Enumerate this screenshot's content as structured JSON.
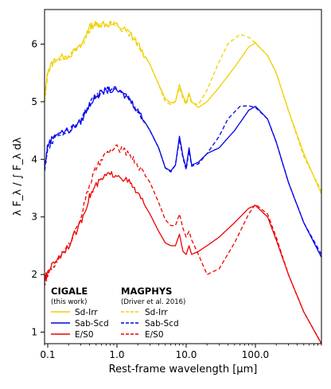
{
  "chart_data": {
    "type": "line",
    "xlabel": "Rest-frame wavelength [µm]",
    "ylabel": "λ F_λ / ∫ F_λ dλ",
    "xscale": "log",
    "xlim": [
      0.09,
      900
    ],
    "ylim": [
      0.8,
      6.6
    ],
    "xticks": [
      {
        "v": 0.1,
        "label": "0.1"
      },
      {
        "v": 1,
        "label": "1.0"
      },
      {
        "v": 10,
        "label": "10.0"
      },
      {
        "v": 100,
        "label": "100.0"
      }
    ],
    "yticks": [
      1,
      2,
      3,
      4,
      5,
      6
    ],
    "legend": {
      "placement": "bottom-left",
      "groups": [
        {
          "title": "CIGALE",
          "subtitle": "(this work)",
          "linestyle": "solid"
        },
        {
          "title": "MAGPHYS",
          "subtitle": "(Driver et al. 2016)",
          "linestyle": "dashed"
        }
      ]
    },
    "series": [
      {
        "name": "Sd-Irr",
        "model": "CIGALE",
        "color": "#f2d000",
        "dash": false,
        "points": [
          [
            0.09,
            5.05
          ],
          [
            0.1,
            5.55
          ],
          [
            0.13,
            5.75
          ],
          [
            0.2,
            5.8
          ],
          [
            0.3,
            5.95
          ],
          [
            0.4,
            6.3
          ],
          [
            0.5,
            6.35
          ],
          [
            0.7,
            6.35
          ],
          [
            1,
            6.33
          ],
          [
            1.5,
            6.2
          ],
          [
            2,
            6.0
          ],
          [
            3,
            5.65
          ],
          [
            4,
            5.3
          ],
          [
            5,
            5.05
          ],
          [
            6,
            4.98
          ],
          [
            7,
            5.0
          ],
          [
            8,
            5.3
          ],
          [
            9,
            5.1
          ],
          [
            10,
            4.98
          ],
          [
            11,
            5.15
          ],
          [
            12,
            5.0
          ],
          [
            15,
            4.9
          ],
          [
            20,
            5.0
          ],
          [
            30,
            5.25
          ],
          [
            50,
            5.6
          ],
          [
            80,
            5.95
          ],
          [
            100,
            6.02
          ],
          [
            150,
            5.8
          ],
          [
            200,
            5.5
          ],
          [
            300,
            4.85
          ],
          [
            500,
            4.1
          ],
          [
            900,
            3.4
          ]
        ]
      },
      {
        "name": "Sd-Irr",
        "model": "MAGPHYS",
        "color": "#f2d000",
        "dash": true,
        "points": [
          [
            0.09,
            5.0
          ],
          [
            0.1,
            5.5
          ],
          [
            0.13,
            5.7
          ],
          [
            0.2,
            5.8
          ],
          [
            0.3,
            5.95
          ],
          [
            0.4,
            6.25
          ],
          [
            0.5,
            6.35
          ],
          [
            0.7,
            6.35
          ],
          [
            1,
            6.33
          ],
          [
            1.5,
            6.2
          ],
          [
            2,
            6.0
          ],
          [
            3,
            5.65
          ],
          [
            4,
            5.3
          ],
          [
            5,
            5.0
          ],
          [
            6,
            4.95
          ],
          [
            7,
            5.0
          ],
          [
            8,
            5.25
          ],
          [
            9,
            5.05
          ],
          [
            10,
            4.95
          ],
          [
            11,
            5.12
          ],
          [
            12,
            4.98
          ],
          [
            15,
            4.95
          ],
          [
            20,
            5.2
          ],
          [
            30,
            5.7
          ],
          [
            40,
            6.0
          ],
          [
            60,
            6.17
          ],
          [
            80,
            6.12
          ],
          [
            100,
            6.02
          ],
          [
            150,
            5.8
          ],
          [
            200,
            5.5
          ],
          [
            300,
            4.85
          ],
          [
            500,
            4.05
          ],
          [
            900,
            3.45
          ]
        ]
      },
      {
        "name": "Sab-Scd",
        "model": "CIGALE",
        "color": "#0000ee",
        "dash": false,
        "points": [
          [
            0.09,
            3.85
          ],
          [
            0.1,
            4.25
          ],
          [
            0.13,
            4.45
          ],
          [
            0.2,
            4.5
          ],
          [
            0.3,
            4.65
          ],
          [
            0.4,
            4.95
          ],
          [
            0.5,
            5.1
          ],
          [
            0.7,
            5.2
          ],
          [
            1,
            5.2
          ],
          [
            1.5,
            5.05
          ],
          [
            2,
            4.85
          ],
          [
            3,
            4.5
          ],
          [
            4,
            4.2
          ],
          [
            5,
            3.85
          ],
          [
            6,
            3.8
          ],
          [
            7,
            3.9
          ],
          [
            8,
            4.4
          ],
          [
            9,
            4.05
          ],
          [
            10,
            3.85
          ],
          [
            11,
            4.2
          ],
          [
            12,
            3.9
          ],
          [
            15,
            3.95
          ],
          [
            20,
            4.1
          ],
          [
            30,
            4.2
          ],
          [
            50,
            4.5
          ],
          [
            80,
            4.85
          ],
          [
            100,
            4.92
          ],
          [
            150,
            4.7
          ],
          [
            200,
            4.3
          ],
          [
            300,
            3.6
          ],
          [
            500,
            2.9
          ],
          [
            900,
            2.3
          ]
        ]
      },
      {
        "name": "Sab-Scd",
        "model": "MAGPHYS",
        "color": "#0000ee",
        "dash": true,
        "points": [
          [
            0.09,
            3.8
          ],
          [
            0.1,
            4.2
          ],
          [
            0.13,
            4.4
          ],
          [
            0.2,
            4.5
          ],
          [
            0.3,
            4.65
          ],
          [
            0.4,
            4.95
          ],
          [
            0.5,
            5.1
          ],
          [
            0.7,
            5.2
          ],
          [
            1,
            5.22
          ],
          [
            1.5,
            5.05
          ],
          [
            2,
            4.85
          ],
          [
            3,
            4.5
          ],
          [
            4,
            4.2
          ],
          [
            5,
            3.85
          ],
          [
            6,
            3.78
          ],
          [
            7,
            3.9
          ],
          [
            8,
            4.35
          ],
          [
            9,
            4.02
          ],
          [
            10,
            3.82
          ],
          [
            11,
            4.15
          ],
          [
            12,
            3.88
          ],
          [
            15,
            3.92
          ],
          [
            20,
            4.1
          ],
          [
            30,
            4.4
          ],
          [
            40,
            4.7
          ],
          [
            60,
            4.92
          ],
          [
            80,
            4.93
          ],
          [
            100,
            4.9
          ],
          [
            150,
            4.7
          ],
          [
            200,
            4.3
          ],
          [
            300,
            3.6
          ],
          [
            500,
            2.9
          ],
          [
            900,
            2.35
          ]
        ]
      },
      {
        "name": "E/S0",
        "model": "CIGALE",
        "color": "#ee0000",
        "dash": false,
        "points": [
          [
            0.09,
            1.9
          ],
          [
            0.1,
            2.05
          ],
          [
            0.13,
            2.25
          ],
          [
            0.2,
            2.5
          ],
          [
            0.3,
            2.9
          ],
          [
            0.4,
            3.35
          ],
          [
            0.5,
            3.55
          ],
          [
            0.7,
            3.72
          ],
          [
            1,
            3.75
          ],
          [
            1.5,
            3.6
          ],
          [
            2,
            3.4
          ],
          [
            3,
            3.05
          ],
          [
            4,
            2.75
          ],
          [
            5,
            2.55
          ],
          [
            6,
            2.5
          ],
          [
            7,
            2.5
          ],
          [
            8,
            2.7
          ],
          [
            9,
            2.4
          ],
          [
            10,
            2.35
          ],
          [
            11,
            2.5
          ],
          [
            12,
            2.35
          ],
          [
            15,
            2.4
          ],
          [
            20,
            2.5
          ],
          [
            30,
            2.65
          ],
          [
            50,
            2.9
          ],
          [
            80,
            3.15
          ],
          [
            100,
            3.2
          ],
          [
            150,
            3.0
          ],
          [
            200,
            2.6
          ],
          [
            300,
            2.0
          ],
          [
            500,
            1.35
          ],
          [
            900,
            0.8
          ]
        ]
      },
      {
        "name": "E/S0",
        "model": "MAGPHYS",
        "color": "#ee0000",
        "dash": true,
        "points": [
          [
            0.09,
            1.85
          ],
          [
            0.1,
            2.0
          ],
          [
            0.13,
            2.2
          ],
          [
            0.2,
            2.5
          ],
          [
            0.3,
            3.0
          ],
          [
            0.4,
            3.55
          ],
          [
            0.5,
            3.85
          ],
          [
            0.7,
            4.1
          ],
          [
            1,
            4.2
          ],
          [
            1.5,
            4.1
          ],
          [
            2,
            3.9
          ],
          [
            3,
            3.6
          ],
          [
            4,
            3.25
          ],
          [
            5,
            2.95
          ],
          [
            6,
            2.85
          ],
          [
            7,
            2.85
          ],
          [
            8,
            3.05
          ],
          [
            9,
            2.8
          ],
          [
            10,
            2.65
          ],
          [
            11,
            2.75
          ],
          [
            12,
            2.6
          ],
          [
            15,
            2.35
          ],
          [
            20,
            2.0
          ],
          [
            30,
            2.1
          ],
          [
            50,
            2.55
          ],
          [
            80,
            3.05
          ],
          [
            100,
            3.22
          ],
          [
            150,
            3.05
          ],
          [
            200,
            2.65
          ],
          [
            300,
            2.0
          ],
          [
            500,
            1.35
          ],
          [
            900,
            0.8
          ]
        ]
      }
    ]
  }
}
